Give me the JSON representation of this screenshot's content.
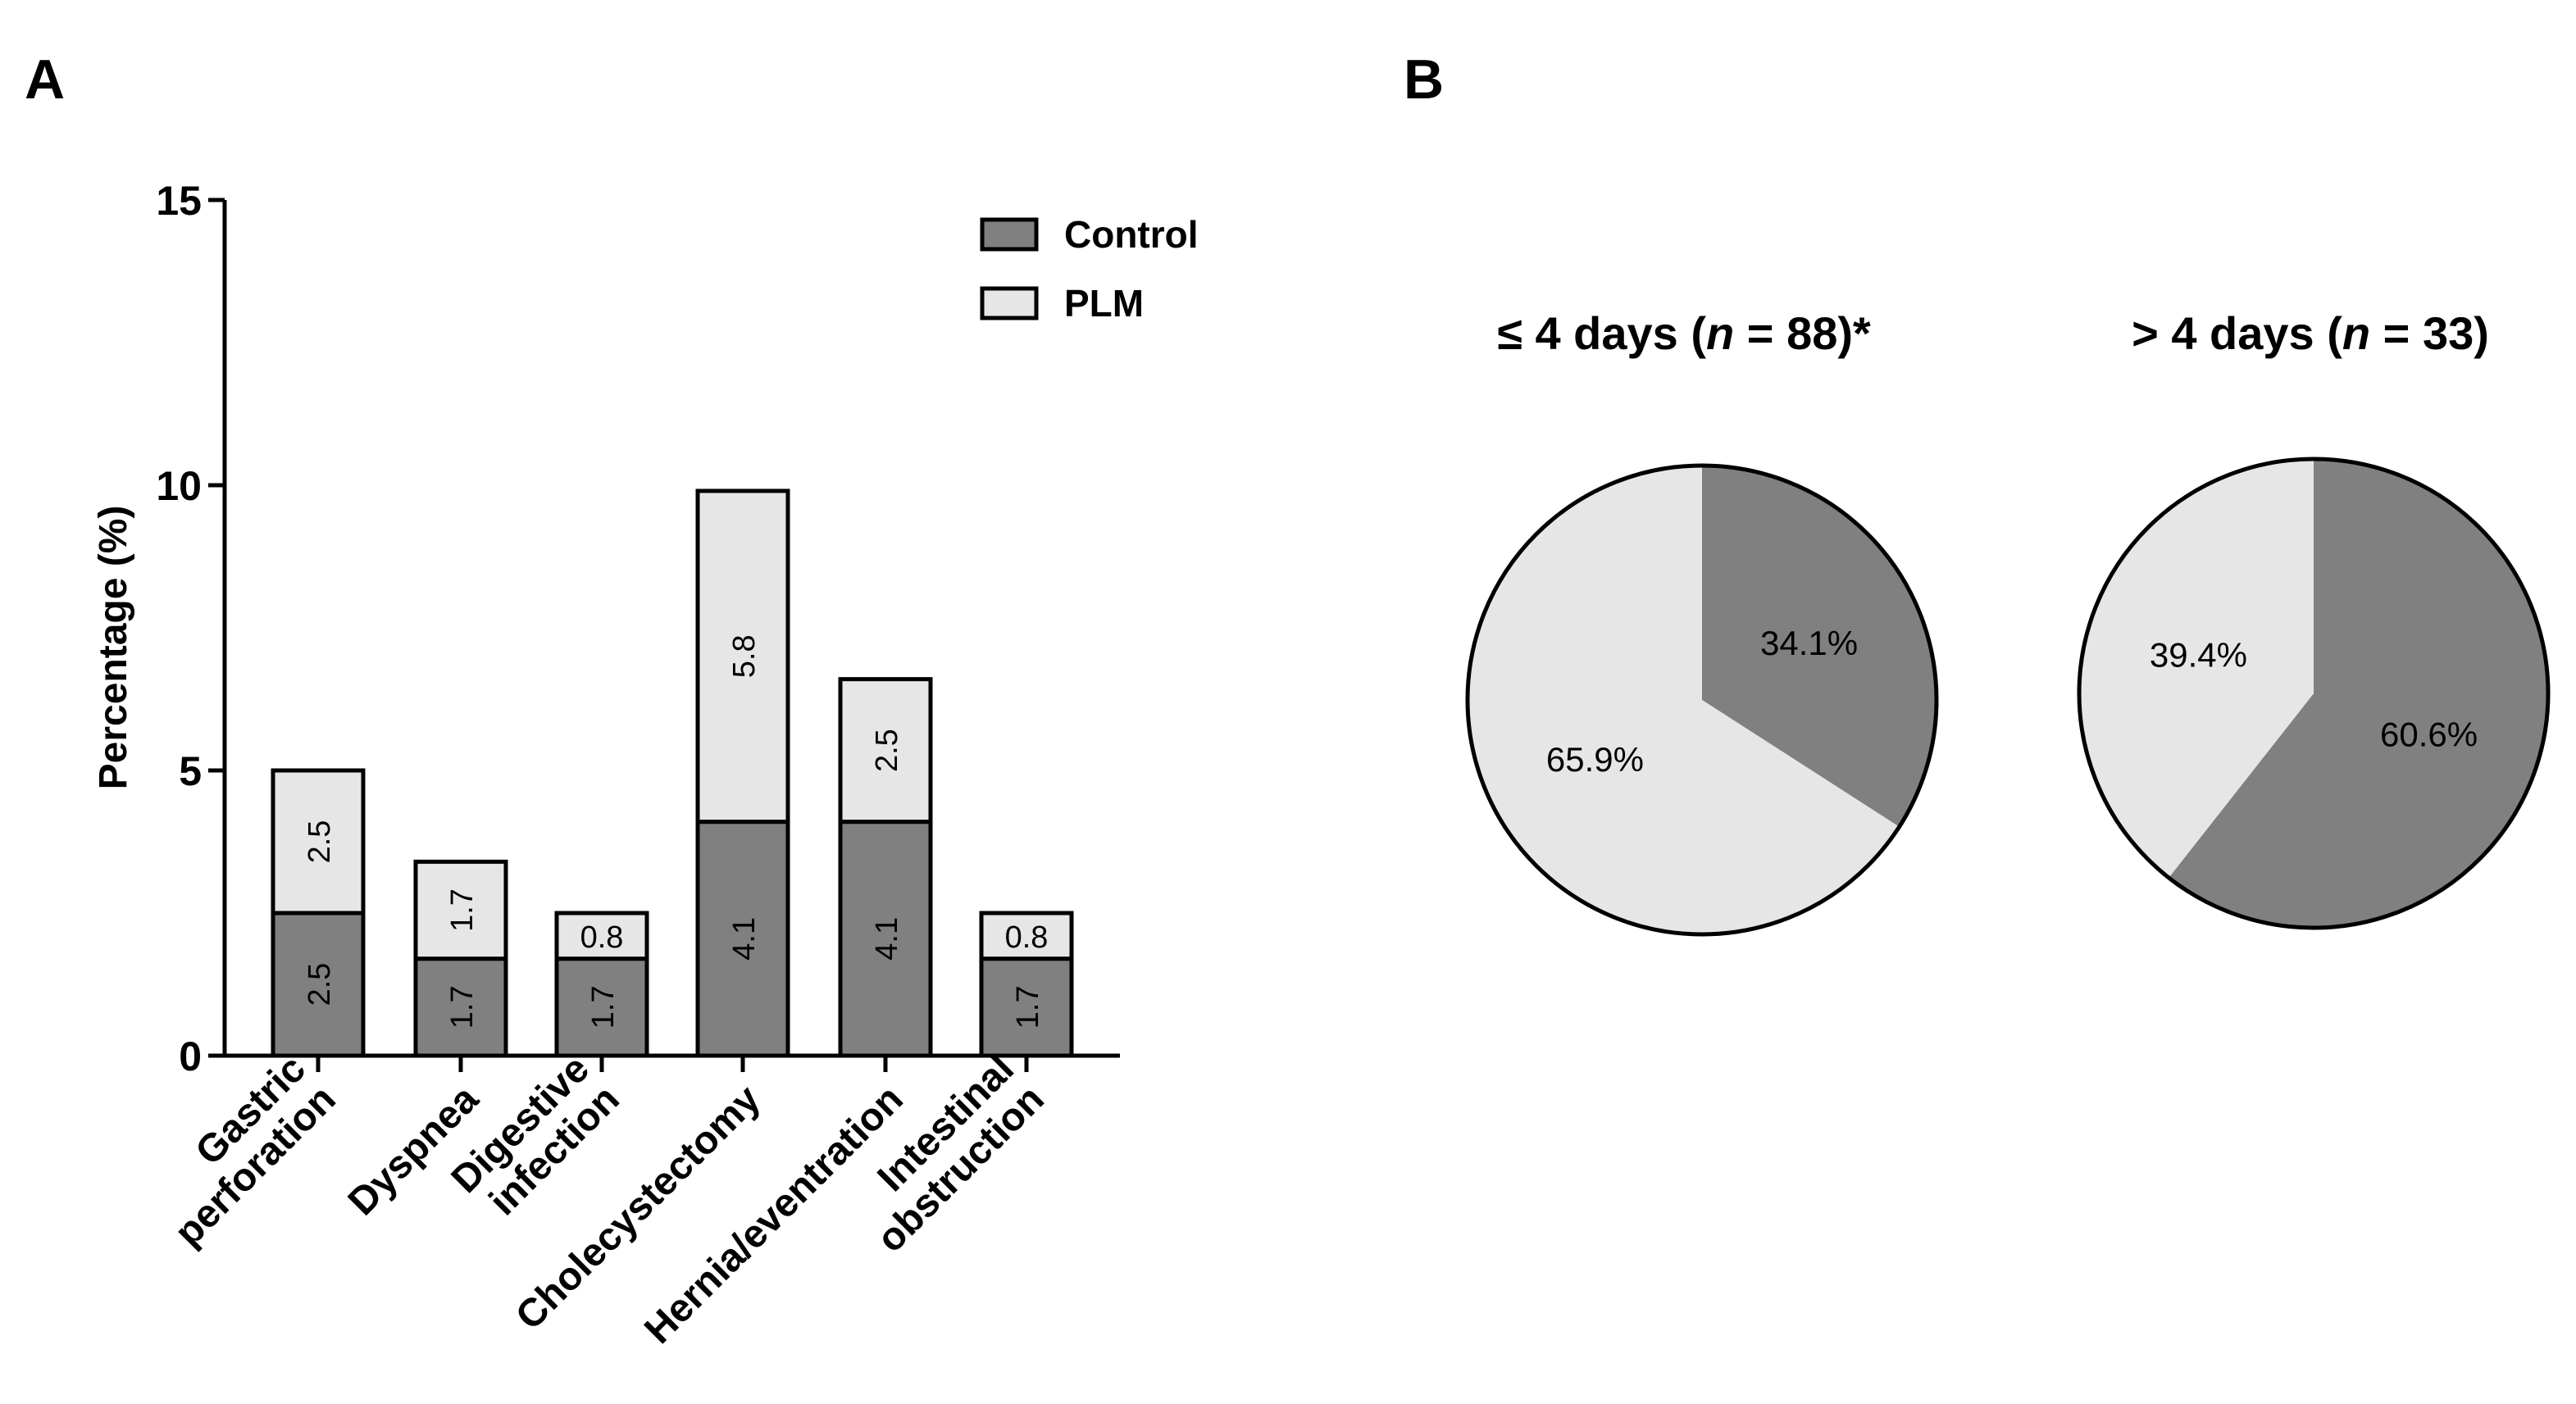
{
  "panel_labels": [
    "A",
    "B"
  ],
  "colors": {
    "control": "#808080",
    "plm": "#e6e6e6",
    "outline": "#000000"
  },
  "chart_data": [
    {
      "type": "bar",
      "stacked": true,
      "ylabel": "Percentage (%)",
      "ylim": [
        0,
        15
      ],
      "yticks": [
        0,
        5,
        10,
        15
      ],
      "categories": [
        [
          "Gastric",
          "perforation"
        ],
        [
          "Dyspnea"
        ],
        [
          "Digestive",
          "infection"
        ],
        [
          "Cholecystectomy"
        ],
        [
          "Hernia/eventration"
        ],
        [
          "Intestinal",
          "obstruction"
        ]
      ],
      "series": [
        {
          "name": "Control",
          "values": [
            2.5,
            1.7,
            1.7,
            4.1,
            4.1,
            1.7
          ],
          "labels": [
            "2.5",
            "1.7",
            "1.7",
            "4.1",
            "4.1",
            "1.7"
          ]
        },
        {
          "name": "PLM",
          "values": [
            2.5,
            1.7,
            0.8,
            5.8,
            2.5,
            0.8
          ],
          "labels": [
            "2.5",
            "1.7",
            "0.8",
            "5.8",
            "2.5",
            "0.8"
          ]
        }
      ],
      "legend": "top-right"
    },
    {
      "type": "pie",
      "title_parts": [
        "≤ 4 days (",
        "n",
        " = 88)*"
      ],
      "slices": [
        {
          "series": "Control",
          "value": 34.1,
          "label": "34.1%"
        },
        {
          "series": "PLM",
          "value": 65.9,
          "label": "65.9%"
        }
      ]
    },
    {
      "type": "pie",
      "title_parts": [
        "> 4 days (",
        "n",
        " = 33)"
      ],
      "slices": [
        {
          "series": "Control",
          "value": 60.6,
          "label": "60.6%"
        },
        {
          "series": "PLM",
          "value": 39.4,
          "label": "39.4%"
        }
      ]
    }
  ]
}
